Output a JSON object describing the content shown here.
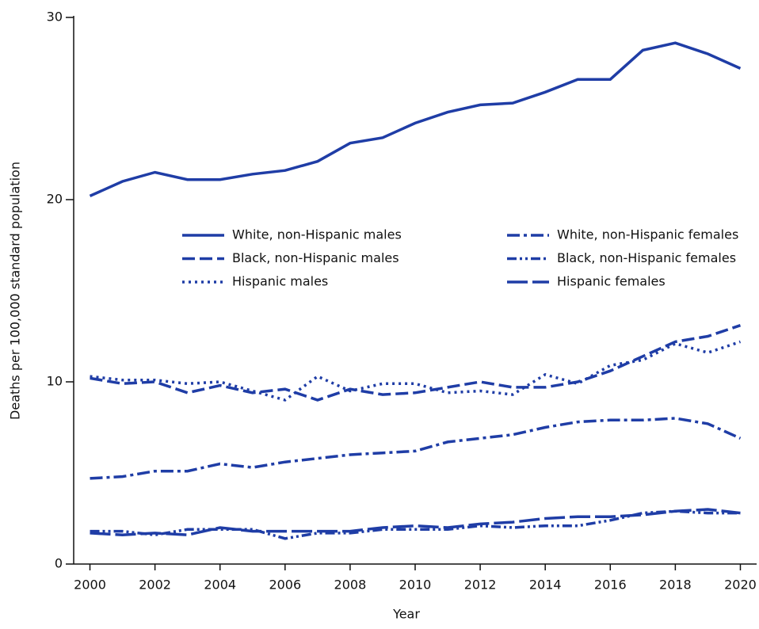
{
  "chart_data": {
    "type": "line",
    "x_label": "Year",
    "y_label": "Deaths per 100,000 standard  population",
    "x": [
      2000,
      2001,
      2002,
      2003,
      2004,
      2005,
      2006,
      2007,
      2008,
      2009,
      2010,
      2011,
      2012,
      2013,
      2014,
      2015,
      2016,
      2017,
      2018,
      2019,
      2020
    ],
    "xlim": [
      1999.5,
      2020.5
    ],
    "xticks": [
      2000,
      2002,
      2004,
      2006,
      2008,
      2010,
      2012,
      2014,
      2016,
      2018,
      2020
    ],
    "ylim": [
      0,
      30
    ],
    "yticks": [
      0,
      10,
      20,
      30
    ],
    "series": [
      {
        "name": "White, non-Hispanic males",
        "color": "#1f3da6",
        "line_style": "solid",
        "values": [
          20.2,
          21.0,
          21.5,
          21.1,
          21.1,
          21.4,
          21.6,
          22.1,
          23.1,
          23.4,
          24.2,
          24.8,
          25.2,
          25.3,
          25.9,
          26.6,
          26.6,
          28.2,
          28.6,
          28.0,
          27.2
        ]
      },
      {
        "name": "White, non-Hispanic females",
        "color": "#1f3da6",
        "line_style": "dash-dot",
        "values": [
          4.7,
          4.8,
          5.1,
          5.1,
          5.5,
          5.3,
          5.6,
          5.8,
          6.0,
          6.1,
          6.2,
          6.7,
          6.9,
          7.1,
          7.5,
          7.8,
          7.9,
          7.9,
          8.0,
          7.7,
          6.9
        ]
      },
      {
        "name": "Black, non-Hispanic males",
        "color": "#1f3da6",
        "line_style": "dash",
        "values": [
          10.2,
          9.9,
          10.0,
          9.4,
          9.8,
          9.4,
          9.6,
          9.0,
          9.6,
          9.3,
          9.4,
          9.7,
          10.0,
          9.7,
          9.7,
          10.0,
          10.6,
          11.4,
          12.2,
          12.5,
          13.1
        ]
      },
      {
        "name": "Black, non-Hispanic females",
        "color": "#1f3da6",
        "line_style": "dash-dot-dot",
        "values": [
          1.8,
          1.8,
          1.6,
          1.9,
          1.9,
          1.9,
          1.4,
          1.7,
          1.7,
          1.9,
          1.9,
          1.9,
          2.1,
          2.0,
          2.1,
          2.1,
          2.4,
          2.8,
          2.9,
          2.8,
          2.8
        ]
      },
      {
        "name": "Hispanic males",
        "color": "#1f3da6",
        "line_style": "dot",
        "values": [
          10.3,
          10.1,
          10.1,
          9.9,
          10.0,
          9.5,
          9.0,
          10.3,
          9.5,
          9.9,
          9.9,
          9.4,
          9.5,
          9.3,
          10.4,
          9.9,
          10.9,
          11.2,
          12.1,
          11.6,
          12.2
        ]
      },
      {
        "name": "Hispanic females",
        "color": "#1f3da6",
        "line_style": "long-dash",
        "values": [
          1.7,
          1.6,
          1.7,
          1.6,
          2.0,
          1.8,
          1.8,
          1.8,
          1.8,
          2.0,
          2.1,
          2.0,
          2.2,
          2.3,
          2.5,
          2.6,
          2.6,
          2.7,
          2.9,
          3.0,
          2.8
        ]
      }
    ]
  }
}
